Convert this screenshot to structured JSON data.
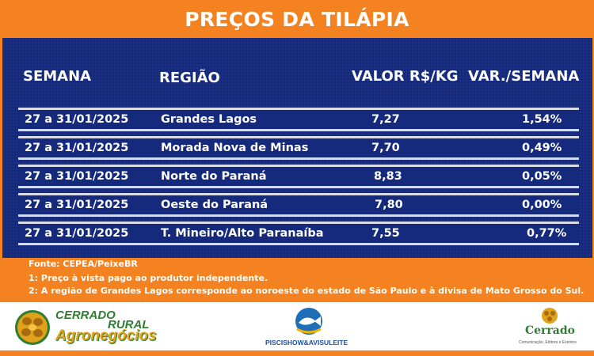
{
  "title": "PREÇOS DA TILÁPIA",
  "headers": {
    "week": "SEMANA",
    "region": "REGIÃO",
    "value": "VALOR R$/KG",
    "variation": "VAR./SEMANA"
  },
  "rows": [
    {
      "week": "27 a 31/01/2025",
      "region": "Grandes Lagos",
      "value": "7,27",
      "variation": "1,54%"
    },
    {
      "week": "27 a 31/01/2025",
      "region": "Morada Nova de Minas",
      "value": "7,70",
      "variation": "0,49%"
    },
    {
      "week": "27 a 31/01/2025",
      "region": "Norte do Paraná",
      "value": "8,83",
      "variation": "0,05%"
    },
    {
      "week": "27 a 31/01/2025",
      "region": "Oeste do Paraná",
      "value": "7,80",
      "variation": "0,00%"
    },
    {
      "week": "27 a 31/01/2025",
      "region": "T. Mineiro/Alto Paranaíba",
      "value": "7,55",
      "variation": "0,77%"
    }
  ],
  "footer": {
    "source": "Fonte: CEPEA/PeixeBR",
    "note1": "1: Preço à vista pago ao produtor independente.",
    "note2": "2: A região de Grandes Lagos corresponde ao noroeste do estado de São Paulo e à divisa de Mato Grosso do Sul."
  },
  "logos": {
    "cerrado_rural": {
      "line1": "CERRADO",
      "line2": "RURAL",
      "line3": "Agronegócios"
    },
    "piscishow": {
      "text": "PISCISHOW&AVISULEITE"
    },
    "cerrado": {
      "name": "Cerrado",
      "tagline": "Comunicação, Editora e Eventos"
    }
  },
  "colors": {
    "orange": "#f58220",
    "navy": "#152a7c",
    "row_border": "#d8dbe6",
    "logo_green": "#2e7d32",
    "logo_gold": "#e0a21b"
  }
}
